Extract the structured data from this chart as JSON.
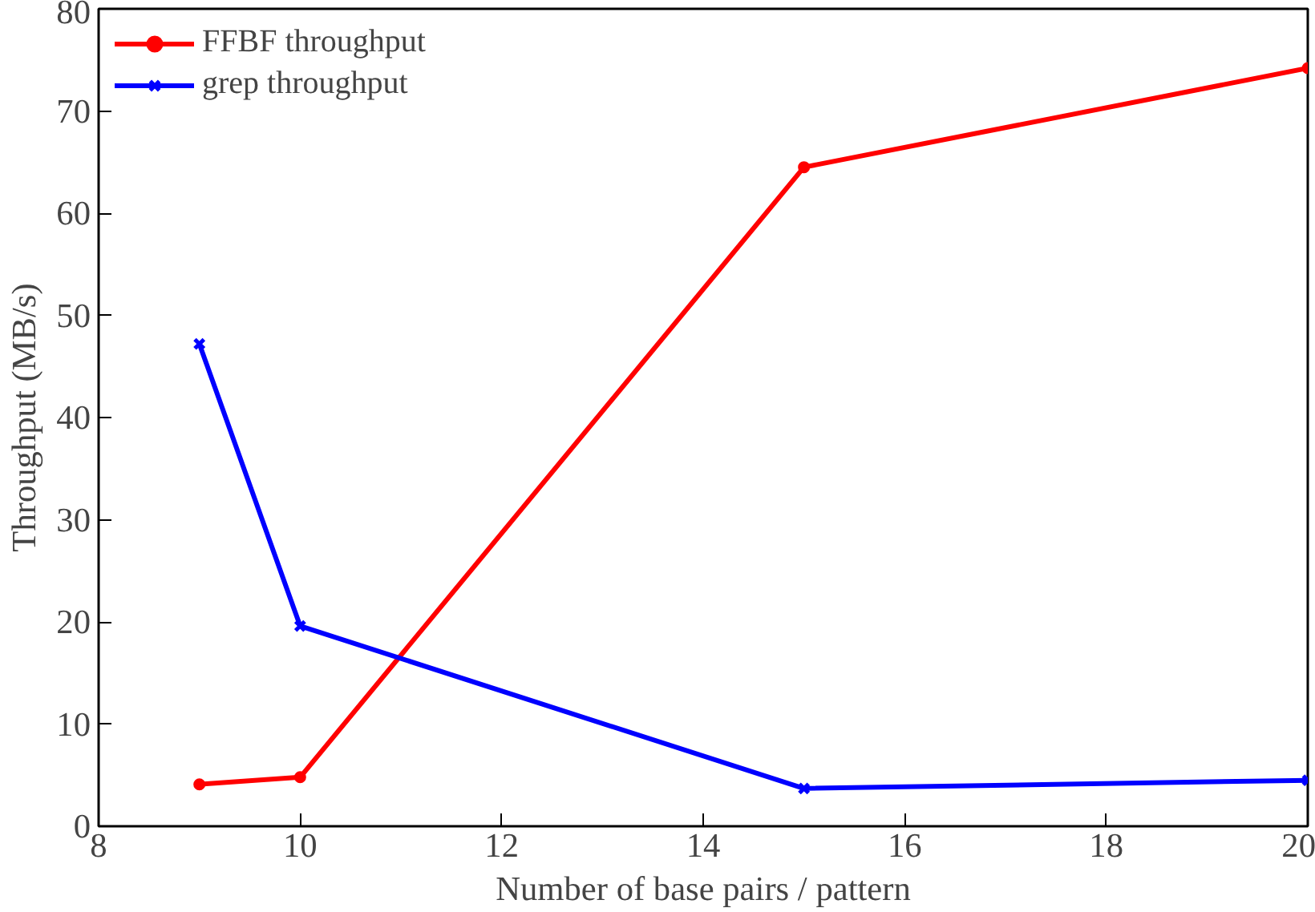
{
  "chart_data": {
    "type": "line",
    "xlabel": "Number of base pairs / pattern",
    "ylabel": "Throughput (MB/s)",
    "x": [
      9,
      10,
      15,
      20
    ],
    "series": [
      {
        "name": "FFBF throughput",
        "color": "#ff0000",
        "values": [
          4.1,
          4.8,
          64.5,
          74.2
        ],
        "marker": "circle"
      },
      {
        "name": "grep throughput",
        "color": "#0000ff",
        "values": [
          47.2,
          19.6,
          3.7,
          4.5
        ],
        "marker": "cross"
      }
    ],
    "xlim": [
      8,
      20
    ],
    "xticks": [
      8,
      10,
      12,
      14,
      16,
      18,
      20
    ],
    "ylim": [
      0,
      80
    ],
    "yticks": [
      0,
      10,
      20,
      30,
      40,
      50,
      60,
      70,
      80
    ],
    "grid": false,
    "legend": "top left",
    "line_style": "solid"
  }
}
